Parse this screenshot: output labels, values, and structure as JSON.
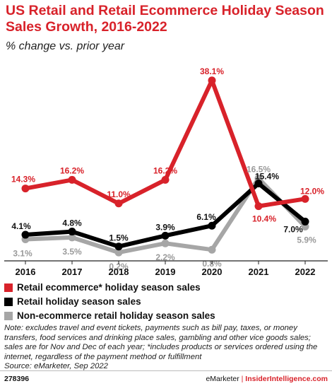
{
  "header": {
    "title": "US Retail and Retail Ecommerce Holiday Season Sales Growth, 2016-2022",
    "subtitle": "% change vs. prior year"
  },
  "chart_data": {
    "type": "line",
    "categories": [
      "2016",
      "2017",
      "2018",
      "2019",
      "2020",
      "2021",
      "2022"
    ],
    "series": [
      {
        "name": "Retail ecommerce* holiday season sales",
        "color": "#d8222a",
        "values": [
          14.3,
          16.2,
          11.0,
          16.2,
          38.1,
          10.4,
          12.0
        ],
        "labels": [
          "14.3%",
          "16.2%",
          "11.0%",
          "16.2%",
          "38.1%",
          "10.4%",
          "12.0%"
        ]
      },
      {
        "name": "Retail holiday season sales",
        "color": "#000000",
        "values": [
          4.1,
          4.8,
          1.5,
          3.9,
          6.1,
          15.4,
          7.0
        ],
        "labels": [
          "4.1%",
          "4.8%",
          "1.5%",
          "3.9%",
          "6.1%",
          "15.4%",
          "7.0%"
        ]
      },
      {
        "name": "Non-ecommerce retail holiday season sales",
        "color": "#a6a6a6",
        "values": [
          3.1,
          3.5,
          0.2,
          2.2,
          0.8,
          16.5,
          5.9
        ],
        "labels": [
          "3.1%",
          "3.5%",
          "0.2%",
          "2.2%",
          "0.8%",
          "16.5%",
          "5.9%"
        ]
      }
    ],
    "ylim": [
      -1.5,
      39
    ],
    "grid": false,
    "legend_position": "bottom"
  },
  "legend": {
    "items": [
      {
        "label": "Retail ecommerce* holiday season sales",
        "color": "#d8222a"
      },
      {
        "label": "Retail holiday season sales",
        "color": "#000000"
      },
      {
        "label": "Non-ecommerce retail holiday season sales",
        "color": "#a6a6a6"
      }
    ]
  },
  "footer": {
    "note": "Note: excludes travel and event tickets, payments such as bill pay, taxes, or money transfers, food services and drinking place sales, gambling and other vice goods sales; sales are for Nov and Dec of each year; *includes products or services ordered using the internet, regardless of the payment method or fulfillment",
    "source": "Source: eMarketer, Sep 2022",
    "chart_id": "278396",
    "brand_left": "eMarketer",
    "brand_separator": "|",
    "brand_right": "InsiderIntelligence.com"
  }
}
